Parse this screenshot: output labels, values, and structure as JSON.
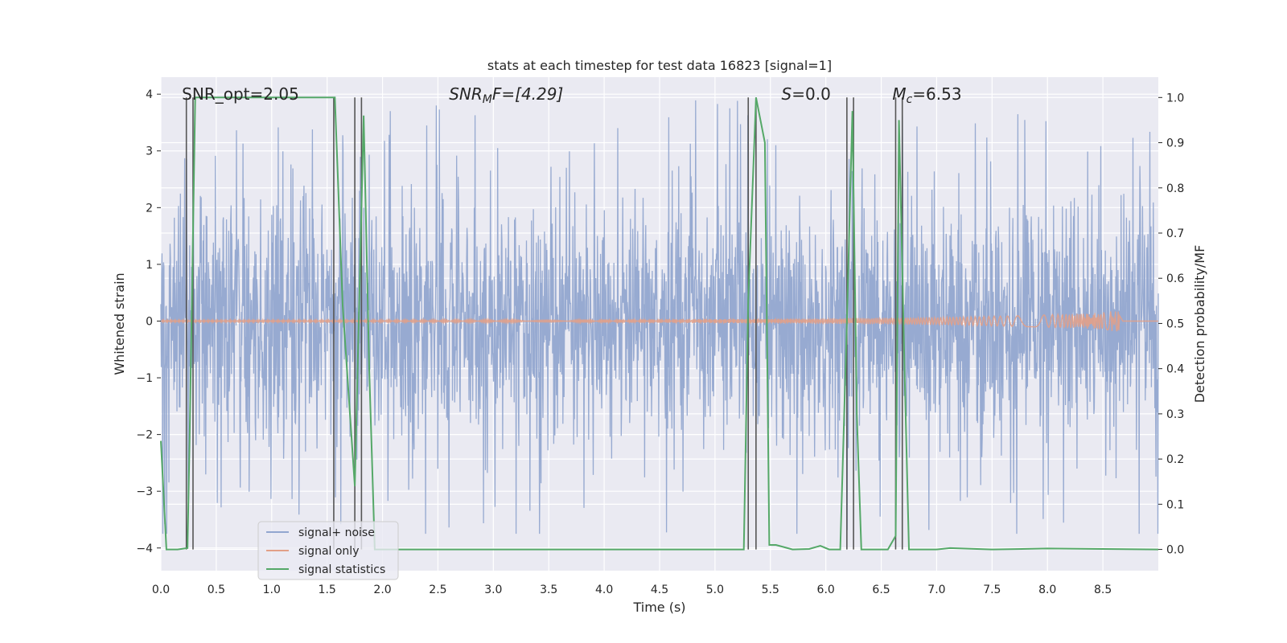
{
  "chart_data": {
    "type": "line",
    "title": "stats at each timestep for test data 16823 [signal=1]",
    "xlabel": "Time (s)",
    "ylabel_left": "Whitened strain",
    "ylabel_right": "Detection probability/MF",
    "xlim": [
      0.0,
      9.0
    ],
    "ylim_left": [
      -4.4,
      4.3
    ],
    "ylim_right": [
      -0.047,
      1.045
    ],
    "x_ticks": [
      "0.0",
      "0.5",
      "1.0",
      "1.5",
      "2.0",
      "2.5",
      "3.0",
      "3.5",
      "4.0",
      "4.5",
      "5.0",
      "5.5",
      "6.0",
      "6.5",
      "7.0",
      "7.5",
      "8.0",
      "8.5"
    ],
    "x_tick_values": [
      0.0,
      0.5,
      1.0,
      1.5,
      2.0,
      2.5,
      3.0,
      3.5,
      4.0,
      4.5,
      5.0,
      5.5,
      6.0,
      6.5,
      7.0,
      7.5,
      8.0,
      8.5
    ],
    "y_left_ticks": [
      "4",
      "3",
      "2",
      "1",
      "0",
      "−1",
      "−2",
      "−3",
      "−4"
    ],
    "y_left_tick_values": [
      4,
      3,
      2,
      1,
      0,
      -1,
      -2,
      -3,
      -4
    ],
    "y_right_ticks": [
      "1.0",
      "0.9",
      "0.8",
      "0.7",
      "0.6",
      "0.5",
      "0.4",
      "0.3",
      "0.2",
      "0.1",
      "0.0"
    ],
    "y_right_tick_values": [
      1.0,
      0.9,
      0.8,
      0.7,
      0.6,
      0.5,
      0.4,
      0.3,
      0.2,
      0.1,
      0.0
    ],
    "annotations": [
      {
        "x": 0.19,
        "parts": [
          {
            "t": "SNR_opt=2.05",
            "italic": false
          }
        ]
      },
      {
        "x": 2.6,
        "parts": [
          {
            "t": "SNR",
            "italic": true
          },
          {
            "t": "M",
            "italic": true,
            "sub": true
          },
          {
            "t": "F=[4.29]",
            "italic": true
          }
        ]
      },
      {
        "x": 5.6,
        "parts": [
          {
            "t": "S",
            "italic": true
          },
          {
            "t": "=0.0",
            "italic": false
          }
        ]
      },
      {
        "x": 6.6,
        "parts": [
          {
            "t": "M",
            "italic": true
          },
          {
            "t": "c",
            "italic": true,
            "sub": true
          },
          {
            "t": "=6.53",
            "italic": false
          }
        ]
      }
    ],
    "vertical_markers": [
      0.23,
      0.29,
      1.56,
      1.75,
      1.81,
      5.3,
      5.37,
      6.19,
      6.25,
      6.63,
      6.69
    ],
    "series": [
      {
        "name": "signal+ noise",
        "color": "#92a6cf",
        "style": "dense noise, amplitude ~1.5 sigma, peaks up to 3.9 and down to -3.7"
      },
      {
        "name": "signal only",
        "color": "#e2a088",
        "style": "chirp growing from 0 to amplitude ~0.25 at t=8.65, then ending"
      },
      {
        "name": "signal statistics",
        "color": "#55a868",
        "axis": "right",
        "x": [
          0.0,
          0.05,
          0.15,
          0.24,
          0.26,
          0.31,
          0.5,
          1.0,
          1.5,
          1.57,
          1.64,
          1.75,
          1.79,
          1.83,
          1.88,
          1.93,
          2.5,
          3.0,
          4.0,
          5.0,
          5.26,
          5.3,
          5.37,
          5.41,
          5.45,
          5.49,
          5.55,
          5.7,
          5.85,
          5.95,
          6.03,
          6.13,
          6.19,
          6.24,
          6.28,
          6.32,
          6.38,
          6.5,
          6.56,
          6.63,
          6.66,
          6.71,
          6.75,
          7.0,
          7.12,
          7.5,
          8.0,
          8.5,
          9.0
        ],
        "values": [
          0.24,
          0.0,
          0.0,
          0.003,
          0.25,
          1.0,
          1.0,
          1.0,
          1.0,
          1.0,
          0.54,
          0.14,
          0.55,
          0.96,
          0.4,
          0.0,
          0.0,
          0.0,
          0.0,
          0.0,
          0.0,
          0.55,
          1.0,
          0.95,
          0.9,
          0.01,
          0.01,
          0.0,
          0.001,
          0.008,
          0.0,
          0.0,
          0.5,
          0.97,
          0.3,
          0.0,
          0.0,
          0.0,
          0.0,
          0.03,
          0.95,
          0.4,
          0.0,
          0.0,
          0.003,
          0.0,
          0.002,
          0.001,
          0.0
        ]
      }
    ],
    "legend": {
      "placement": "lower-left",
      "entries": [
        "signal+ noise",
        "signal only",
        "signal statistics"
      ]
    },
    "colors": {
      "background": "#eaeaf2",
      "grid": "#ffffff",
      "text": "#262626",
      "marker": "#555555"
    }
  }
}
